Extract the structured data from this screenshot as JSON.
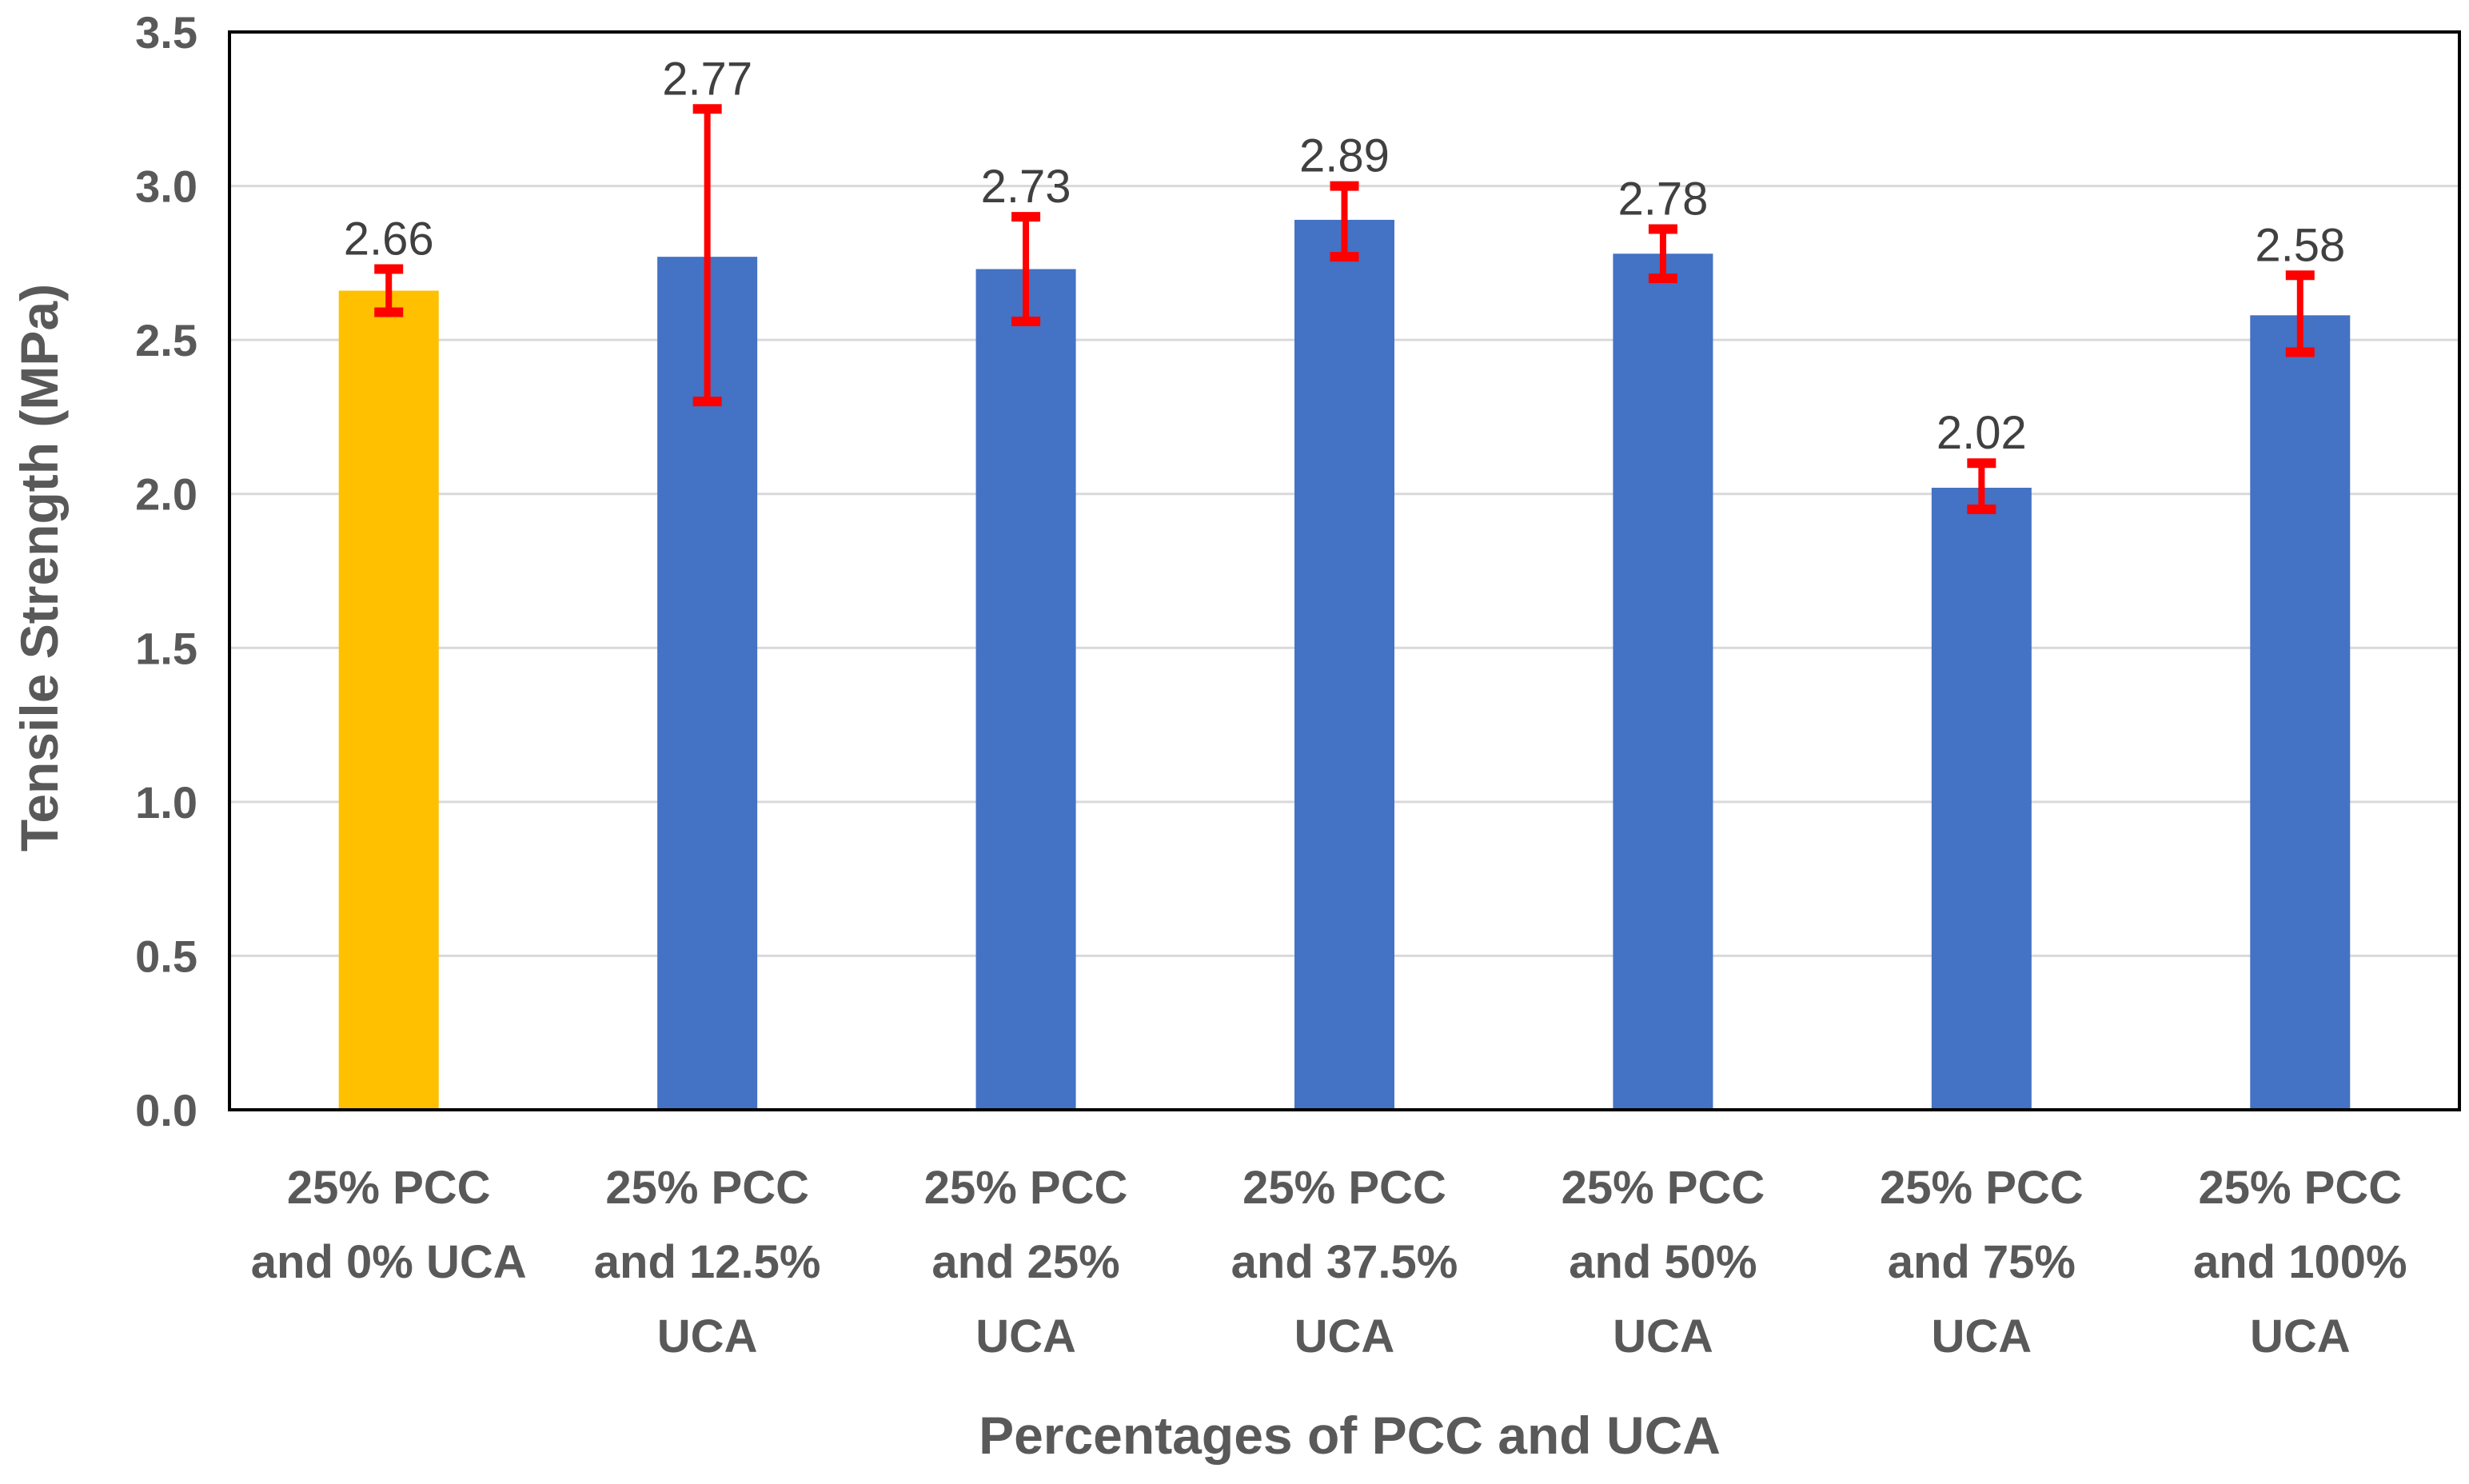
{
  "chart_data": {
    "type": "bar",
    "title": "",
    "xlabel": "Percentages of PCC and UCA",
    "ylabel": "Tensile Strength (MPa)",
    "ylim": [
      0,
      3.5
    ],
    "yticks": [
      0,
      0.5,
      1,
      1.5,
      2,
      2.5,
      3,
      3.5
    ],
    "ytick_labels": [
      "0.0",
      "0.5",
      "1.0",
      "1.5",
      "2.0",
      "2.5",
      "3.0",
      "3.5"
    ],
    "grid": true,
    "legend": "none",
    "categories": [
      [
        "25% PCC",
        "and 0% UCA"
      ],
      [
        "25% PCC",
        "and 12.5%",
        "UCA"
      ],
      [
        "25% PCC",
        "and 25%",
        "UCA"
      ],
      [
        "25% PCC",
        "and 37.5%",
        "UCA"
      ],
      [
        "25% PCC",
        "and 50%",
        "UCA"
      ],
      [
        "25% PCC",
        "and 75%",
        "UCA"
      ],
      [
        "25% PCC",
        "and 100%",
        "UCA"
      ]
    ],
    "values": [
      2.66,
      2.77,
      2.73,
      2.89,
      2.78,
      2.02,
      2.58
    ],
    "data_labels": [
      "2.66",
      "2.77",
      "2.73",
      "2.89",
      "2.78",
      "2.02",
      "2.58"
    ],
    "error_low": [
      2.59,
      2.3,
      2.56,
      2.77,
      2.7,
      1.95,
      2.46
    ],
    "error_high": [
      2.73,
      3.25,
      2.9,
      3.0,
      2.86,
      2.1,
      2.71
    ],
    "bar_colors": [
      "#FFC000",
      "#4472C4",
      "#4472C4",
      "#4472C4",
      "#4472C4",
      "#4472C4",
      "#4472C4"
    ],
    "error_color": "#FF0000",
    "gridline_color": "#D9D9D9",
    "axis_color": "#000000"
  }
}
